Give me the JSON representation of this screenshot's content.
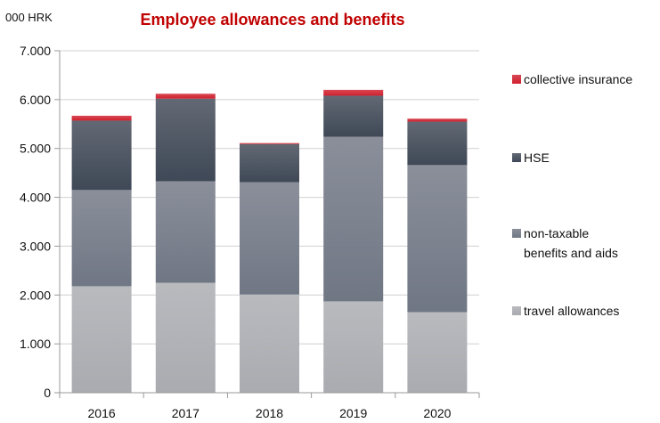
{
  "chart_data": {
    "type": "bar",
    "stacked": true,
    "title": "Employee allowances and benefits",
    "unit_label": "000 HRK",
    "xlabel": "",
    "ylabel": "",
    "categories": [
      "2016",
      "2017",
      "2018",
      "2019",
      "2020"
    ],
    "ylim": [
      0,
      7000
    ],
    "yticks": [
      0,
      1000,
      2000,
      3000,
      4000,
      5000,
      6000,
      7000
    ],
    "ytick_labels": [
      "0",
      "1.000",
      "2.000",
      "3.000",
      "4.000",
      "5.000",
      "6.000",
      "7.000"
    ],
    "grid": true,
    "legend_position": "right",
    "series": [
      {
        "name": "travel allowances",
        "color": "#a9abb0",
        "values": [
          2180,
          2250,
          2010,
          1870,
          1650
        ]
      },
      {
        "name": "non-taxable benefits and aids",
        "color": "#707784",
        "values": [
          1970,
          2080,
          2300,
          3370,
          3010
        ]
      },
      {
        "name": "HSE",
        "color": "#3f4856",
        "values": [
          1420,
          1690,
          780,
          840,
          890
        ]
      },
      {
        "name": "collective insurance",
        "color": "#d0202e",
        "values": [
          100,
          100,
          20,
          120,
          60
        ]
      }
    ],
    "legend_order": [
      "collective insurance",
      "HSE",
      "non-taxable benefits and aids",
      "travel allowances"
    ],
    "legend_lines": {
      "collective insurance": [
        "collective insurance"
      ],
      "HSE": [
        "HSE"
      ],
      "non-taxable benefits and aids": [
        "non-taxable",
        "benefits and aids"
      ],
      "travel allowances": [
        "travel allowances"
      ]
    }
  }
}
